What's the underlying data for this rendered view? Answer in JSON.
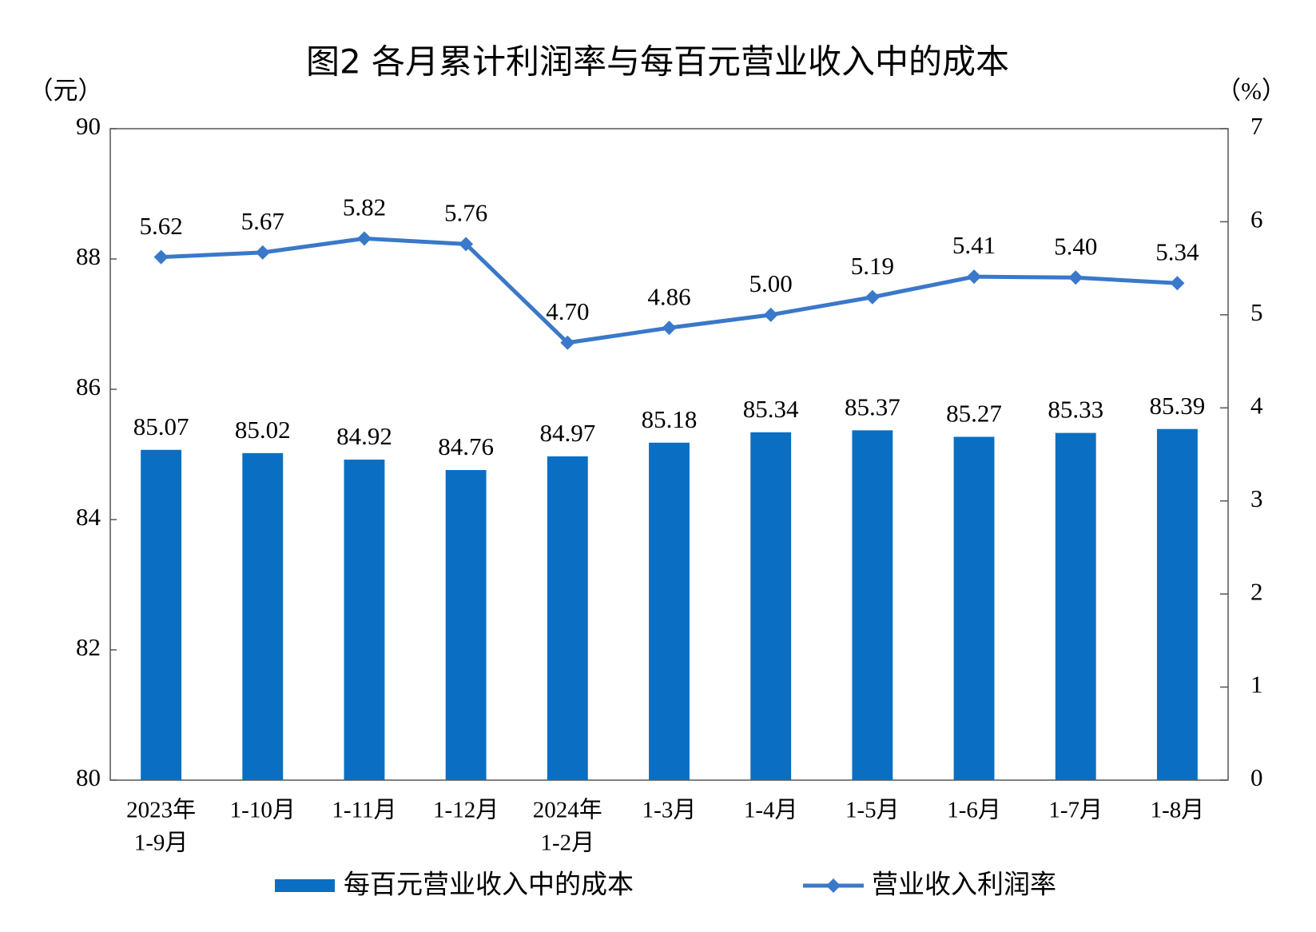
{
  "chart_data": {
    "type": "bar-line",
    "title": "图2  各月累计利润率与每百元营业收入中的成本",
    "y_label": "（元）",
    "y2_label": "（%）",
    "categories": [
      [
        "2023年",
        "1-9月"
      ],
      [
        "1-10月"
      ],
      [
        "1-11月"
      ],
      [
        "1-12月"
      ],
      [
        "2024年",
        "1-2月"
      ],
      [
        "1-3月"
      ],
      [
        "1-4月"
      ],
      [
        "1-5月"
      ],
      [
        "1-6月"
      ],
      [
        "1-7月"
      ],
      [
        "1-8月"
      ]
    ],
    "ylim": [
      80,
      90
    ],
    "yticks": [
      80,
      82,
      84,
      86,
      88,
      90
    ],
    "y2lim": [
      0,
      7
    ],
    "y2ticks": [
      0,
      1,
      2,
      3,
      4,
      5,
      6,
      7
    ],
    "series": [
      {
        "name": "每百元营业收入中的成本",
        "type": "bar",
        "color": "#0a6fc2",
        "values": [
          85.07,
          85.02,
          84.92,
          84.76,
          84.97,
          85.18,
          85.34,
          85.37,
          85.27,
          85.33,
          85.39
        ]
      },
      {
        "name": "营业收入利润率",
        "type": "line",
        "axis": "y2",
        "color": "#3a78c9",
        "values": [
          5.62,
          5.67,
          5.82,
          5.76,
          4.7,
          4.86,
          5.0,
          5.19,
          5.41,
          5.4,
          5.34
        ],
        "value_labels": [
          "5.62",
          "5.67",
          "5.82",
          "5.76",
          "4.70",
          "4.86",
          "5.00",
          "5.19",
          "5.41",
          "5.40",
          "5.34"
        ]
      }
    ]
  }
}
